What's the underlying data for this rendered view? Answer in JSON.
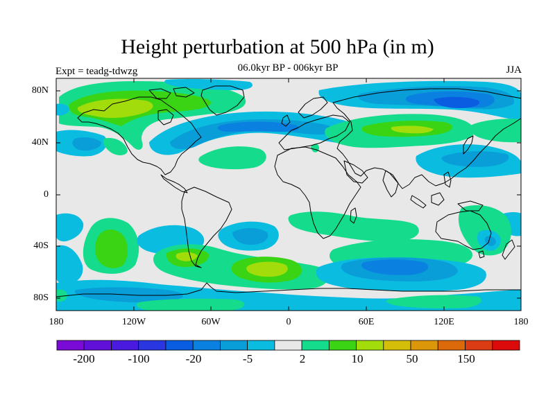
{
  "title": "Height perturbation at 500 hPa (in m)",
  "subtitle": "06.0kyr BP - 006kyr BP",
  "left_label": "Expt = teadg-tdwzg",
  "right_label": "JJA",
  "lat_ticks": [
    "80N",
    "40N",
    "0",
    "40S",
    "80S"
  ],
  "lon_ticks": [
    "180",
    "120W",
    "60W",
    "0",
    "60E",
    "120E",
    "180"
  ],
  "colorbar": {
    "colors": [
      "#7a0ad6",
      "#6010d8",
      "#4a1ae0",
      "#2a36e0",
      "#0a5ce0",
      "#0a80e0",
      "#0a9ed8",
      "#0abce0",
      "#e8e8e8",
      "#14dc8c",
      "#3ad414",
      "#a2dc0a",
      "#d4be0a",
      "#dc960a",
      "#dc6a0a",
      "#dc3c14",
      "#dc0a0a"
    ],
    "labels": [
      "-200",
      "-100",
      "-20",
      "-5",
      "2",
      "10",
      "50",
      "150"
    ]
  },
  "map": {
    "background_color": "#e8e8e8",
    "coast_color": "#000000"
  }
}
